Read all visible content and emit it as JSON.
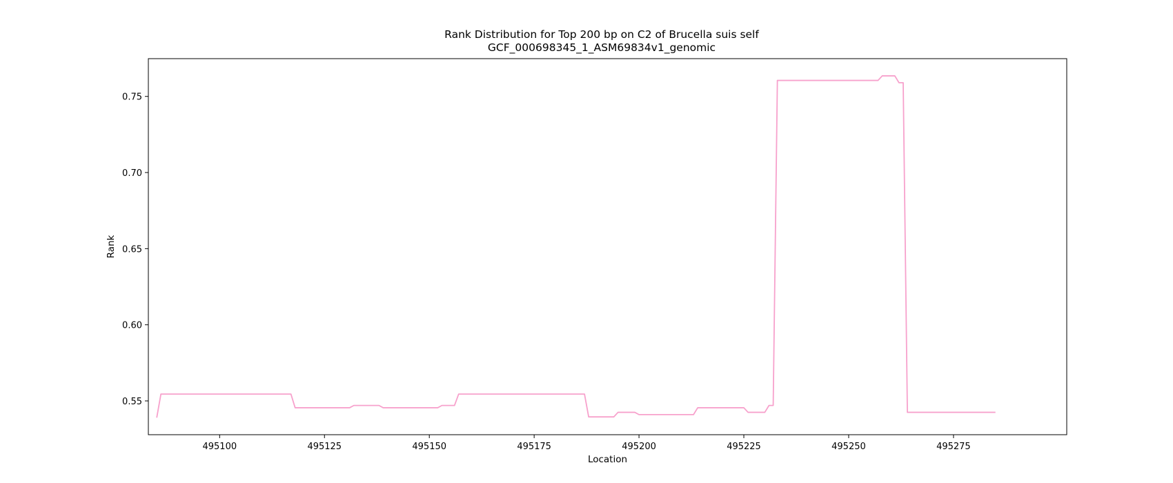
{
  "chart_data": {
    "type": "line",
    "title": "Rank Distribution for Top 200 bp on C2 of Brucella suis self",
    "subtitle": "GCF_000698345_1_ASM69834v1_genomic",
    "xlabel": "Location",
    "ylabel": "Rank",
    "xlim": [
      495083,
      495302
    ],
    "ylim": [
      0.5278,
      0.7748
    ],
    "xticks": [
      495100,
      495125,
      495150,
      495175,
      495200,
      495225,
      495250,
      495275
    ],
    "yticks": [
      0.55,
      0.6,
      0.65,
      0.7,
      0.75
    ],
    "ytick_labels": [
      "0.55",
      "0.60",
      "0.65",
      "0.70",
      "0.75"
    ],
    "grid": false,
    "series": [
      {
        "color": "#f7a1cc",
        "x": [
          495085,
          495086,
          495117,
          495118,
          495131,
          495132,
          495138,
          495139,
          495152,
          495153,
          495156,
          495157,
          495187,
          495188,
          495194,
          495195,
          495199,
          495200,
          495213,
          495214,
          495225,
          495226,
          495230,
          495231,
          495232,
          495233,
          495257,
          495258,
          495261,
          495262,
          495263,
          495264,
          495285
        ],
        "y": [
          0.539,
          0.5545,
          0.5545,
          0.5455,
          0.5455,
          0.547,
          0.547,
          0.5455,
          0.5455,
          0.547,
          0.547,
          0.5545,
          0.5545,
          0.5395,
          0.5395,
          0.5425,
          0.5425,
          0.541,
          0.541,
          0.5455,
          0.5455,
          0.5425,
          0.5425,
          0.547,
          0.547,
          0.7605,
          0.7605,
          0.7635,
          0.7635,
          0.759,
          0.759,
          0.5425,
          0.5425
        ]
      }
    ]
  }
}
